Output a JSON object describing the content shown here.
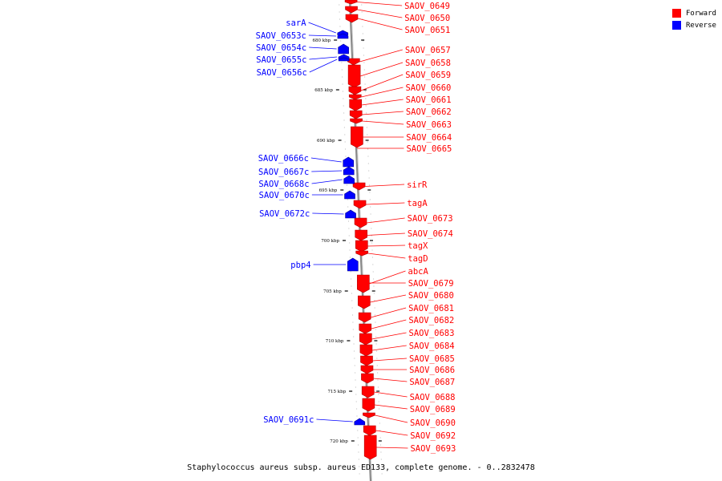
{
  "caption": "Staphylococcus aureus subsp. aureus ED133, complete genome. - 0..2832478",
  "legend": [
    {
      "label": "Forward",
      "color": "#ff0000"
    },
    {
      "label": "Reverse",
      "color": "#0000ff"
    }
  ],
  "colors": {
    "forward": "#ff0000",
    "reverse": "#0000ff",
    "backbone": "#888888"
  },
  "ticks": [
    "680 kbp",
    "685 kbp",
    "690 kbp",
    "695 kbp",
    "700 kbp",
    "705 kbp",
    "710 kbp",
    "715 kbp",
    "720 kbp"
  ],
  "forward_genes": [
    "SAOV_0649",
    "SAOV_0650",
    "SAOV_0651",
    "SAOV_0657",
    "SAOV_0658",
    "SAOV_0659",
    "SAOV_0660",
    "SAOV_0661",
    "SAOV_0662",
    "SAOV_0663",
    "SAOV_0664",
    "SAOV_0665",
    "sirR",
    "tagA",
    "SAOV_0673",
    "SAOV_0674",
    "tagX",
    "tagD",
    "abcA",
    "SAOV_0679",
    "SAOV_0680",
    "SAOV_0681",
    "SAOV_0682",
    "SAOV_0683",
    "SAOV_0684",
    "SAOV_0685",
    "SAOV_0686",
    "SAOV_0687",
    "SAOV_0688",
    "SAOV_0689",
    "SAOV_0690",
    "SAOV_0692",
    "SAOV_0693"
  ],
  "reverse_genes": [
    "sarA",
    "SAOV_0653c",
    "SAOV_0654c",
    "SAOV_0655c",
    "SAOV_0656c",
    "SAOV_0666c",
    "SAOV_0667c",
    "SAOV_0668c",
    "SAOV_0670c",
    "SAOV_0672c",
    "pbp4",
    "SAOV_0691c"
  ]
}
